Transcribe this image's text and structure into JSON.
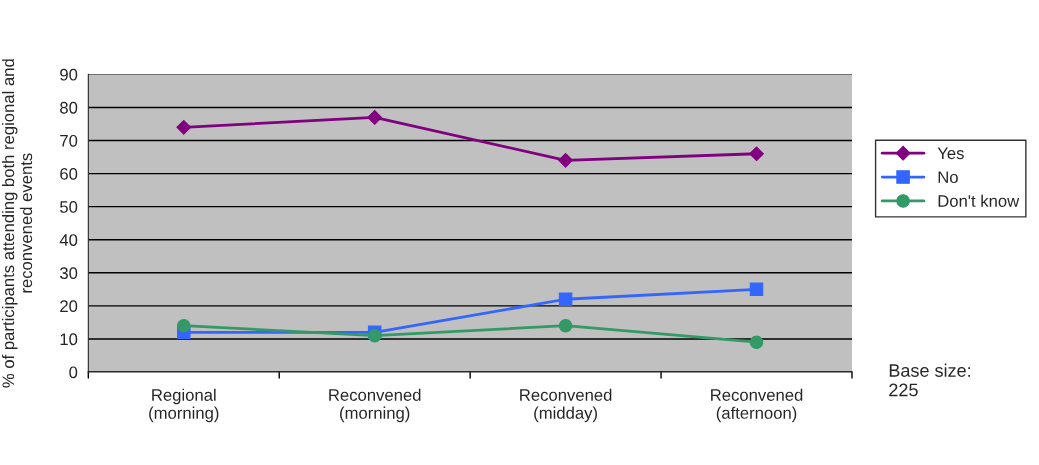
{
  "chart_data": {
    "type": "line",
    "ylabel": "% of participants attending both regional and reconvened events",
    "categories": [
      "Regional\n(morning)",
      "Reconvened\n(morning)",
      "Reconvened\n(midday)",
      "Reconvened\n(afternoon)"
    ],
    "series": [
      {
        "name": "Yes",
        "color": "#800080",
        "marker": "diamond",
        "values": [
          74,
          77,
          64,
          66
        ]
      },
      {
        "name": "No",
        "color": "#3366ff",
        "marker": "square",
        "values": [
          12,
          12,
          22,
          25
        ]
      },
      {
        "name": "Don't know",
        "color": "#339966",
        "marker": "circle",
        "values": [
          14,
          11,
          14,
          9
        ]
      }
    ],
    "ylim": [
      0,
      90
    ],
    "yticks": [
      0,
      10,
      20,
      30,
      40,
      50,
      60,
      70,
      80,
      90
    ],
    "grid": "y",
    "legend": "right",
    "annotations": [
      "Base size:\n225"
    ]
  }
}
